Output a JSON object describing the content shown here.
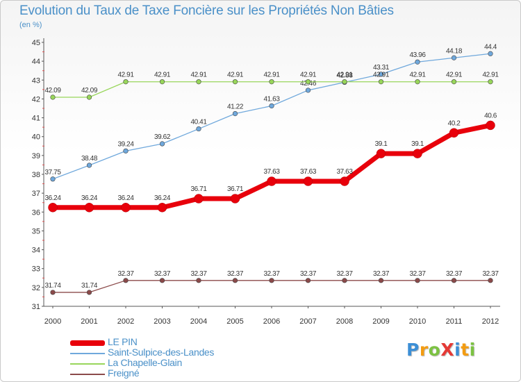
{
  "header": {
    "title": "Evolution du Taux de Taxe Foncière sur les Propriétés Non Bâties",
    "subtitle": "(en %)"
  },
  "logo": {
    "text": "ProXiti",
    "letters": [
      {
        "ch": "P",
        "color": "#3c8fd6"
      },
      {
        "ch": "r",
        "color": "#f39c12"
      },
      {
        "ch": "o",
        "color": "#7cc242"
      },
      {
        "ch": "X",
        "color": "#e53935"
      },
      {
        "ch": "i",
        "color": "#3c8fd6"
      },
      {
        "ch": "t",
        "color": "#f39c12"
      },
      {
        "ch": "i",
        "color": "#7cc242"
      }
    ]
  },
  "chart_data": {
    "type": "line",
    "title": "Evolution du Taux de Taxe Foncière sur les Propriétés Non Bâties",
    "ylabel": "(en %)",
    "xlabel": "",
    "x": [
      "2000",
      "2001",
      "2002",
      "2003",
      "2004",
      "2005",
      "2006",
      "2007",
      "2008",
      "2009",
      "2010",
      "2011",
      "2012"
    ],
    "ylim": [
      31,
      45
    ],
    "yticks": [
      31,
      32,
      33,
      34,
      35,
      36,
      37,
      38,
      39,
      40,
      41,
      42,
      43,
      44,
      45
    ],
    "grid": false,
    "legend_position": "bottom-left",
    "series": [
      {
        "name": "LE PIN",
        "color": "#e8000b",
        "emphasis": true,
        "values": [
          36.24,
          36.24,
          36.24,
          36.24,
          36.71,
          36.71,
          37.63,
          37.63,
          37.63,
          39.1,
          39.1,
          40.2,
          40.6
        ],
        "labels": [
          "36.24",
          "36.24",
          "36.24",
          "36.24",
          "36.71",
          "36.71",
          "37.63",
          "37.63",
          "37.63",
          "39.1",
          "39.1",
          "40.2",
          "40.6"
        ]
      },
      {
        "name": "Saint-Sulpice-des-Landes",
        "color": "#6fa8dc",
        "emphasis": false,
        "values": [
          37.75,
          38.48,
          39.24,
          39.62,
          40.41,
          41.22,
          41.63,
          42.46,
          42.88,
          43.31,
          43.96,
          44.18,
          44.4
        ],
        "labels": [
          "37.75",
          "38.48",
          "39.24",
          "39.62",
          "40.41",
          "41.22",
          "41.63",
          "42.46",
          "42.88",
          "43.31",
          "43.96",
          "44.18",
          "44.4"
        ]
      },
      {
        "name": "La Chapelle-Glain",
        "color": "#98d65a",
        "emphasis": false,
        "values": [
          42.09,
          42.09,
          42.91,
          42.91,
          42.91,
          42.91,
          42.91,
          42.91,
          42.91,
          42.91,
          42.91,
          42.91,
          42.91
        ],
        "labels": [
          "42.09",
          "42.09",
          "42.91",
          "42.91",
          "42.91",
          "42.91",
          "42.91",
          "42.91",
          "42.91",
          "42.91",
          "42.91",
          "42.91",
          "42.91"
        ]
      },
      {
        "name": "Freigné",
        "color": "#8b4a4a",
        "emphasis": false,
        "values": [
          31.74,
          31.74,
          32.37,
          32.37,
          32.37,
          32.37,
          32.37,
          32.37,
          32.37,
          32.37,
          32.37,
          32.37,
          32.37
        ],
        "labels": [
          "31.74",
          "31.74",
          "32.37",
          "32.37",
          "32.37",
          "32.37",
          "32.37",
          "32.37",
          "32.37",
          "32.37",
          "32.37",
          "32.37",
          "32.37"
        ]
      }
    ]
  }
}
